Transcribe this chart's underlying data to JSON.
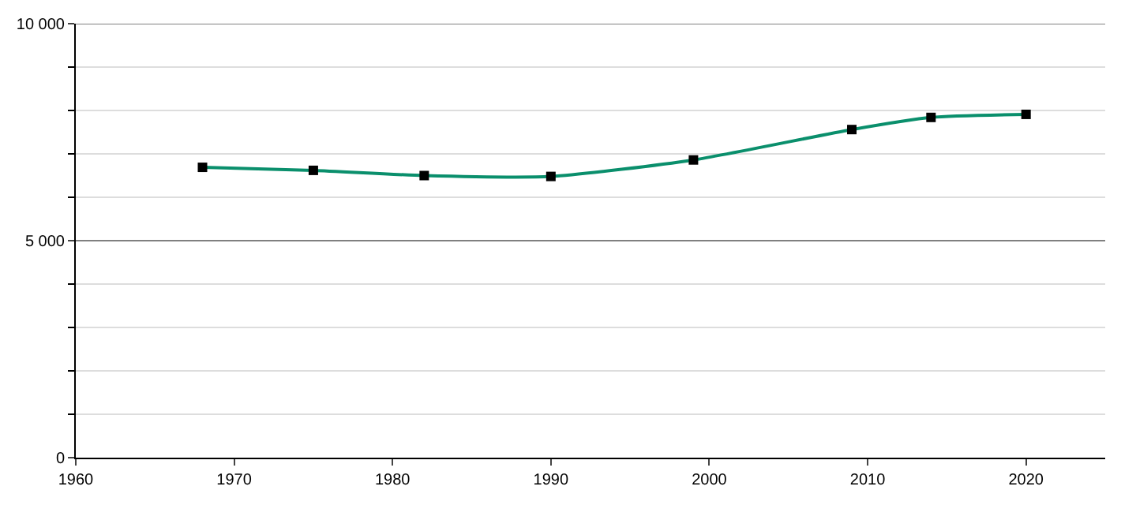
{
  "chart_data": {
    "type": "line",
    "x": [
      1968,
      1975,
      1982,
      1990,
      1999,
      2009,
      2014,
      2020
    ],
    "series": [
      {
        "color": "#0a8f6c",
        "values": [
          6690,
          6620,
          6500,
          6480,
          6860,
          7560,
          7840,
          7910
        ]
      }
    ],
    "xlim": [
      1960,
      2025
    ],
    "xticks": [
      1960,
      1970,
      1980,
      1990,
      2000,
      2010,
      2020
    ],
    "ylim": [
      0,
      10000
    ],
    "yticks": [
      {
        "value": 0,
        "label": "0"
      },
      {
        "value": 1000,
        "label": null
      },
      {
        "value": 2000,
        "label": null
      },
      {
        "value": 3000,
        "label": null
      },
      {
        "value": 4000,
        "label": null
      },
      {
        "value": 5000,
        "label": "5 000"
      },
      {
        "value": 6000,
        "label": null
      },
      {
        "value": 7000,
        "label": null
      },
      {
        "value": 8000,
        "label": null
      },
      {
        "value": 9000,
        "label": null
      },
      {
        "value": 10000,
        "label": "10 000"
      }
    ],
    "ref_lines": [
      {
        "axis": "y",
        "value": 5000,
        "color": "#808080"
      },
      {
        "axis": "y",
        "value": 10000,
        "color": "#808080"
      }
    ],
    "grid": "y",
    "marker": "square",
    "line_style": "solid"
  }
}
